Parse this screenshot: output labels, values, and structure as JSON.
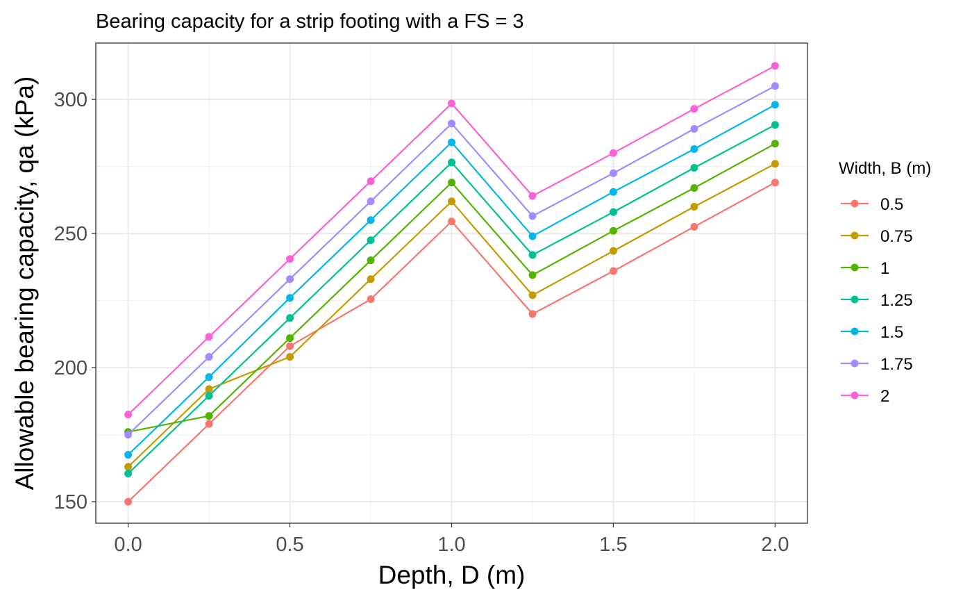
{
  "chart_data": {
    "type": "line",
    "title": "Bearing capacity for a strip footing with a FS = 3",
    "xlabel": "Depth, D (m)",
    "ylabel": "Allowable bearing capacity, qa (kPa)",
    "xlim": [
      -0.1,
      2.1
    ],
    "ylim": [
      142,
      321
    ],
    "x_ticks": [
      0.0,
      0.5,
      1.0,
      1.5,
      2.0
    ],
    "x_tick_labels": [
      "0.0",
      "0.5",
      "1.0",
      "1.5",
      "2.0"
    ],
    "y_ticks": [
      150,
      200,
      250,
      300
    ],
    "y_tick_labels": [
      "150",
      "200",
      "250",
      "300"
    ],
    "grid": true,
    "legend": {
      "title": "Width, B (m)",
      "position": "right"
    },
    "x": [
      0,
      0.25,
      0.5,
      0.75,
      1.0,
      1.25,
      1.5,
      1.75,
      2.0
    ],
    "series": [
      {
        "name": "0.5",
        "color": "#F8766D",
        "values": [
          150,
          179,
          208,
          225.5,
          254.5,
          220,
          236,
          252.5,
          269
        ]
      },
      {
        "name": "0.75",
        "color": "#C49A00",
        "values": [
          163,
          192,
          204,
          233,
          262,
          227,
          243.5,
          260,
          276
        ]
      },
      {
        "name": "1",
        "color": "#53B400",
        "values": [
          176,
          182,
          211,
          240,
          269,
          234.5,
          251,
          267,
          283.5
        ]
      },
      {
        "name": "1.25",
        "color": "#00C094",
        "values": [
          160.5,
          189.5,
          218.5,
          247.5,
          276.5,
          242,
          258,
          274.5,
          290.5
        ]
      },
      {
        "name": "1.5",
        "color": "#00B6EB",
        "values": [
          167.5,
          196.5,
          226,
          255,
          284,
          249,
          265.5,
          281.5,
          298
        ]
      },
      {
        "name": "1.75",
        "color": "#A58AFF",
        "values": [
          175,
          204,
          233,
          262,
          291,
          256.5,
          272.5,
          289,
          305
        ]
      },
      {
        "name": "2",
        "color": "#FB61D7",
        "values": [
          182.5,
          211.5,
          240.5,
          269.5,
          298.5,
          264,
          280,
          296.5,
          312.5
        ]
      }
    ]
  }
}
